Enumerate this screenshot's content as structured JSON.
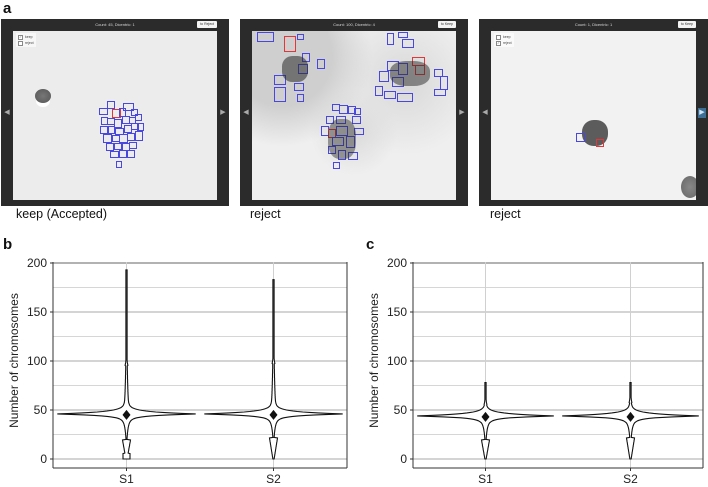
{
  "panel_a": {
    "letter": "a",
    "viewers": [
      {
        "header": "Count: 45, Dicentric: 1",
        "button": "to Reject",
        "checkbox_keep": "keep",
        "checkbox_reject": "reject",
        "keep_checked": true,
        "reject_checked": false,
        "nav_left": "◀",
        "nav_right": "▶",
        "caption": "keep (Accepted)"
      },
      {
        "header": "Count: 100, Dicentric: 4",
        "button": "to Keep",
        "checkbox_keep": "keep",
        "checkbox_reject": "reject",
        "keep_checked": false,
        "reject_checked": true,
        "nav_left": "◀",
        "nav_right": "▶",
        "caption": "reject"
      },
      {
        "header": "Count: 1, Dicentric: 1",
        "button": "to Keep",
        "checkbox_keep": "keep",
        "checkbox_reject": "reject",
        "keep_checked": false,
        "reject_checked": true,
        "nav_left": "◀",
        "nav_right": "▶",
        "caption": "reject"
      }
    ]
  },
  "panel_b": {
    "letter": "b"
  },
  "panel_c": {
    "letter": "c"
  },
  "colors": {
    "viewer_frame": "#2b2b2b",
    "bbox_normal": "#4848e0",
    "bbox_dicentric": "#e03838",
    "nav_active": "#3d6f96",
    "grid_major": "#aaaaaa",
    "grid_minor": "#d0d0d0"
  },
  "chart_data": [
    {
      "panel": "b",
      "type": "violin",
      "title": "",
      "xlabel": "",
      "ylabel": "Number of chromosomes",
      "categories": [
        "S1",
        "S2"
      ],
      "ylim": [
        0,
        200
      ],
      "yticks": [
        0,
        50,
        100,
        150,
        200
      ],
      "grid": true,
      "series": [
        {
          "name": "S1",
          "mean": 45,
          "mode": 46,
          "min": 0,
          "max": 193,
          "upper_shoulder": 95,
          "lower_shoulder": 20
        },
        {
          "name": "S2",
          "mean": 45,
          "mode": 46,
          "min": 0,
          "max": 183,
          "upper_shoulder": 97,
          "lower_shoulder": 22
        }
      ]
    },
    {
      "panel": "c",
      "type": "violin",
      "title": "",
      "xlabel": "",
      "ylabel": "Number of chromosomes",
      "categories": [
        "S1",
        "S2"
      ],
      "ylim": [
        0,
        200
      ],
      "yticks": [
        0,
        50,
        100,
        150,
        200
      ],
      "grid": true,
      "series": [
        {
          "name": "S1",
          "mean": 43,
          "mode": 44,
          "min": 0,
          "max": 78,
          "upper_shoulder": 55,
          "lower_shoulder": 20
        },
        {
          "name": "S2",
          "mean": 43,
          "mode": 44,
          "min": 0,
          "max": 78,
          "upper_shoulder": 57,
          "lower_shoulder": 22
        }
      ]
    }
  ]
}
